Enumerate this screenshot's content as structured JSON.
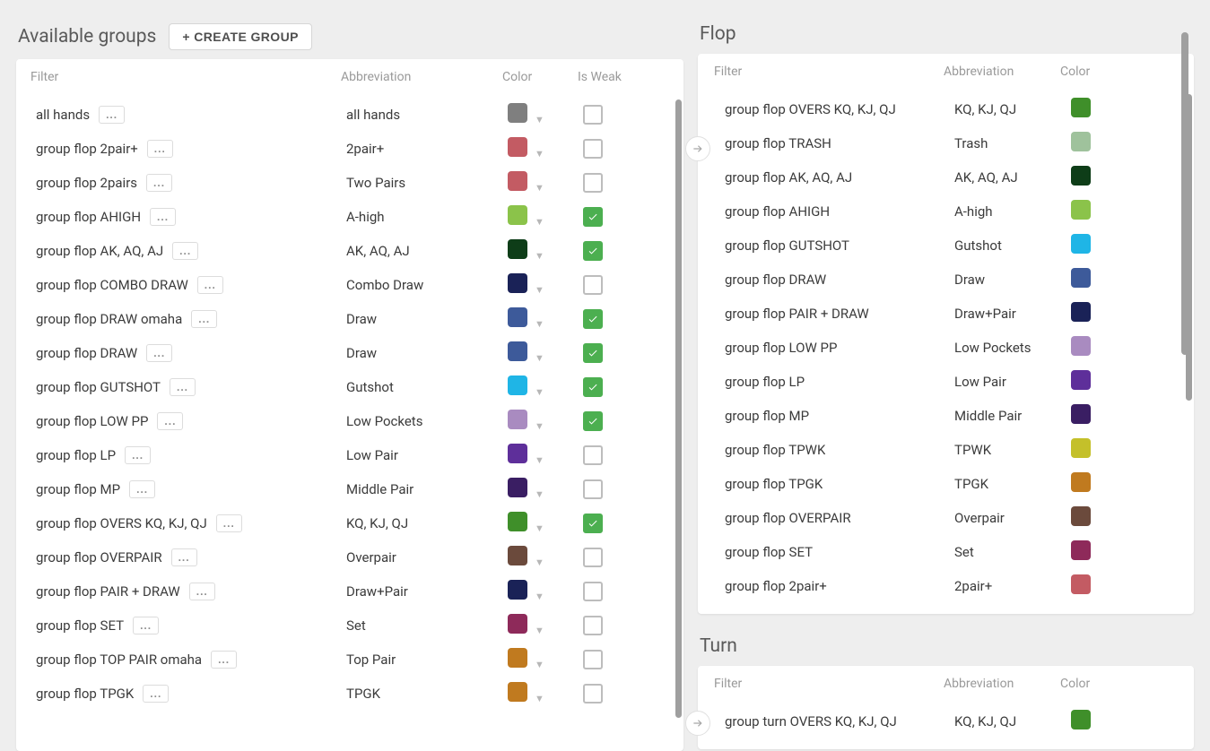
{
  "left": {
    "title": "Available groups",
    "createLabel": "+ CREATE GROUP",
    "headers": {
      "filter": "Filter",
      "abbrev": "Abbreviation",
      "color": "Color",
      "weak": "Is Weak"
    },
    "menuGlyph": "...",
    "rows": [
      {
        "name": "all hands",
        "abbrev": "all hands",
        "color": "#7f7f7f",
        "weak": false
      },
      {
        "name": "group flop 2pair+",
        "abbrev": "2pair+",
        "color": "#c35b63",
        "weak": false
      },
      {
        "name": "group flop 2pairs",
        "abbrev": "Two Pairs",
        "color": "#c35b63",
        "weak": false
      },
      {
        "name": "group flop AHIGH",
        "abbrev": "A-high",
        "color": "#8bc34a",
        "weak": true
      },
      {
        "name": "group flop AK, AQ, AJ",
        "abbrev": "AK, AQ, AJ",
        "color": "#0e3d18",
        "weak": true
      },
      {
        "name": "group flop COMBO DRAW",
        "abbrev": "Combo Draw",
        "color": "#1a2257",
        "weak": false
      },
      {
        "name": "group flop DRAW omaha",
        "abbrev": "Draw",
        "color": "#3d5a9a",
        "weak": true
      },
      {
        "name": "group flop DRAW",
        "abbrev": "Draw",
        "color": "#3d5a9a",
        "weak": true
      },
      {
        "name": "group flop GUTSHOT",
        "abbrev": "Gutshot",
        "color": "#1fb5e6",
        "weak": true
      },
      {
        "name": "group flop LOW PP",
        "abbrev": "Low Pockets",
        "color": "#a98bc0",
        "weak": true
      },
      {
        "name": "group flop LP",
        "abbrev": "Low Pair",
        "color": "#5e2f9a",
        "weak": false
      },
      {
        "name": "group flop MP",
        "abbrev": "Middle Pair",
        "color": "#3a1e63",
        "weak": false
      },
      {
        "name": "group flop OVERS KQ, KJ, QJ",
        "abbrev": "KQ, KJ, QJ",
        "color": "#3f8f2a",
        "weak": true
      },
      {
        "name": "group flop OVERPAIR",
        "abbrev": "Overpair",
        "color": "#6b4a3c",
        "weak": false
      },
      {
        "name": "group flop PAIR + DRAW",
        "abbrev": "Draw+Pair",
        "color": "#1a2257",
        "weak": false
      },
      {
        "name": "group flop SET",
        "abbrev": "Set",
        "color": "#8e2a5a",
        "weak": false
      },
      {
        "name": "group flop TOP PAIR omaha",
        "abbrev": "Top Pair",
        "color": "#c07a1f",
        "weak": false
      },
      {
        "name": "group flop TPGK",
        "abbrev": "TPGK",
        "color": "#c07a1f",
        "weak": false
      }
    ],
    "scroll": {
      "heightPx": 690
    }
  },
  "right": {
    "flop": {
      "title": "Flop",
      "headers": {
        "filter": "Filter",
        "abbrev": "Abbreviation",
        "color": "Color"
      },
      "rows": [
        {
          "name": "group flop OVERS KQ, KJ, QJ",
          "abbrev": "KQ, KJ, QJ",
          "color": "#3f8f2a"
        },
        {
          "name": "group flop TRASH",
          "abbrev": "Trash",
          "color": "#9fc29c"
        },
        {
          "name": "group flop AK, AQ, AJ",
          "abbrev": "AK, AQ, AJ",
          "color": "#0e3d18"
        },
        {
          "name": "group flop AHIGH",
          "abbrev": "A-high",
          "color": "#8bc34a"
        },
        {
          "name": "group flop GUTSHOT",
          "abbrev": "Gutshot",
          "color": "#1fb5e6"
        },
        {
          "name": "group flop DRAW",
          "abbrev": "Draw",
          "color": "#3d5a9a"
        },
        {
          "name": "group flop PAIR + DRAW",
          "abbrev": "Draw+Pair",
          "color": "#1a2257"
        },
        {
          "name": "group flop LOW PP",
          "abbrev": "Low Pockets",
          "color": "#a98bc0"
        },
        {
          "name": "group flop LP",
          "abbrev": "Low Pair",
          "color": "#5e2f9a"
        },
        {
          "name": "group flop MP",
          "abbrev": "Middle Pair",
          "color": "#3a1e63"
        },
        {
          "name": "group flop TPWK",
          "abbrev": "TPWK",
          "color": "#c4c02a"
        },
        {
          "name": "group flop TPGK",
          "abbrev": "TPGK",
          "color": "#c07a1f"
        },
        {
          "name": "group flop OVERPAIR",
          "abbrev": "Overpair",
          "color": "#6b4a3c"
        },
        {
          "name": "group flop SET",
          "abbrev": "Set",
          "color": "#8e2a5a"
        },
        {
          "name": "group flop 2pair+",
          "abbrev": "2pair+",
          "color": "#c35b63"
        }
      ]
    },
    "turn": {
      "title": "Turn",
      "headers": {
        "filter": "Filter",
        "abbrev": "Abbreviation",
        "color": "Color"
      },
      "rows": [
        {
          "name": "group turn OVERS KQ, KJ, QJ",
          "abbrev": "KQ, KJ, QJ",
          "color": "#3f8f2a"
        }
      ]
    },
    "outerScroll": {
      "heightPx": 360
    }
  }
}
